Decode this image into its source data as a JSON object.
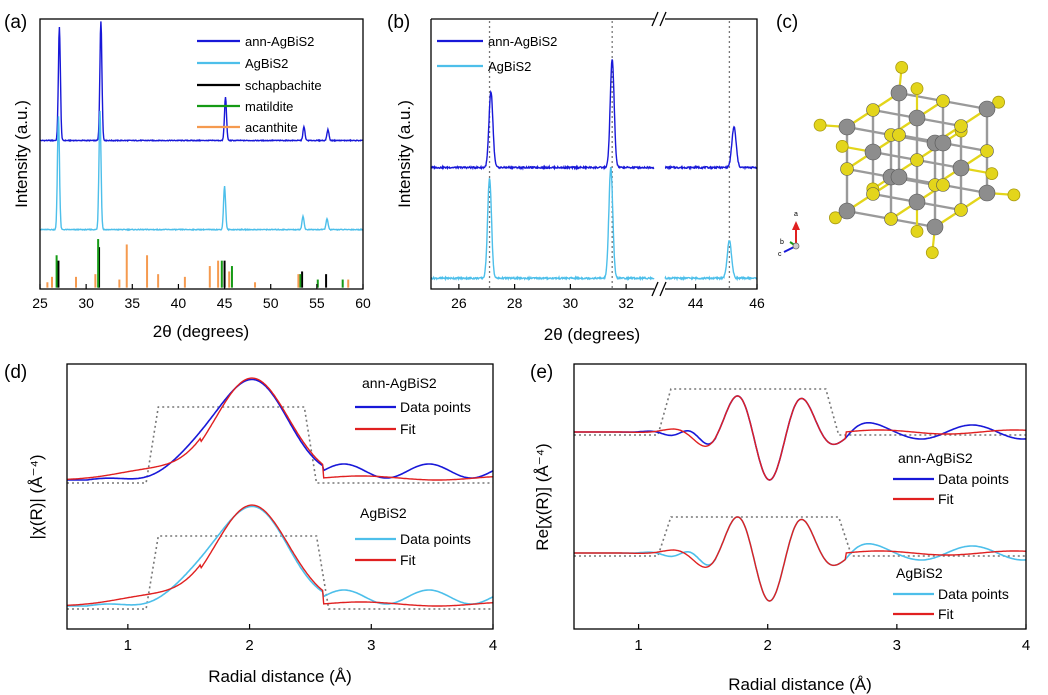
{
  "colors": {
    "dark": "#1818d8",
    "light": "#4dbfea",
    "black": "#000000",
    "green": "#159a15",
    "orange": "#f59a4f",
    "fit": "#e02020",
    "dotted": "#777777",
    "sulfur": "#e3d51b",
    "bi": "#b54bc4",
    "ag": "#8d8d8d",
    "bond": "#9a9a9a"
  },
  "icons": {
    "crystal_structure": "ball-and-stick AgBiS2 crystal model",
    "axis_triad": "a-b-c axis triad"
  },
  "chart_data": [
    {
      "panel": "(a)",
      "type": "line",
      "xlabel": "2θ (degrees)",
      "ylabel": "Intensity (a.u.)",
      "xlim": [
        25,
        60
      ],
      "xticks": [
        "25",
        "30",
        "35",
        "40",
        "45",
        "50",
        "55",
        "60"
      ],
      "legend_position": "top-right",
      "series": [
        {
          "name": "ann-AgBiS2",
          "color": "#1818d8",
          "offset": 0.55,
          "peaks": [
            [
              27.1,
              0.42
            ],
            [
              31.6,
              0.44
            ],
            [
              45.1,
              0.16
            ],
            [
              53.6,
              0.05
            ],
            [
              56.2,
              0.04
            ]
          ]
        },
        {
          "name": "AgBiS2",
          "color": "#4dbfea",
          "offset": 0.22,
          "peaks": [
            [
              27.0,
              0.42
            ],
            [
              31.5,
              0.44
            ],
            [
              45.0,
              0.16
            ],
            [
              53.5,
              0.05
            ],
            [
              56.1,
              0.04
            ]
          ]
        }
      ],
      "references": [
        {
          "name": "schapbachite",
          "color": "#000000",
          "sticks": [
            [
              27.0,
              0.1
            ],
            [
              31.4,
              0.15
            ],
            [
              45.0,
              0.1
            ],
            [
              53.4,
              0.06
            ],
            [
              56.0,
              0.05
            ]
          ]
        },
        {
          "name": "matildite",
          "color": "#159a15",
          "sticks": [
            [
              26.8,
              0.12
            ],
            [
              31.3,
              0.18
            ],
            [
              44.7,
              0.1
            ],
            [
              45.8,
              0.08
            ],
            [
              53.2,
              0.05
            ],
            [
              55.1,
              0.03
            ],
            [
              57.8,
              0.03
            ]
          ]
        },
        {
          "name": "acanthite",
          "color": "#f59a4f",
          "sticks": [
            [
              25.8,
              0.02
            ],
            [
              26.3,
              0.04
            ],
            [
              28.9,
              0.04
            ],
            [
              31.0,
              0.05
            ],
            [
              33.6,
              0.03
            ],
            [
              34.4,
              0.16
            ],
            [
              36.6,
              0.12
            ],
            [
              37.8,
              0.05
            ],
            [
              40.7,
              0.04
            ],
            [
              43.4,
              0.08
            ],
            [
              44.3,
              0.1
            ],
            [
              45.5,
              0.06
            ],
            [
              48.3,
              0.02
            ],
            [
              53.0,
              0.05
            ],
            [
              58.4,
              0.03
            ]
          ]
        }
      ]
    },
    {
      "panel": "(b)",
      "type": "line",
      "xlabel": "2θ (degrees)",
      "ylabel": "Intensity (a.u.)",
      "broken_x_axis": true,
      "xlim_left": [
        25,
        33
      ],
      "xlim_right": [
        43,
        46
      ],
      "xticks": [
        "26",
        "28",
        "30",
        "32",
        "44",
        "46"
      ],
      "legend_position": "top-left",
      "reference_lines": [
        27.1,
        31.5,
        45.1
      ],
      "series": [
        {
          "name": "ann-AgBiS2",
          "color": "#1818d8",
          "offset": 0.45,
          "peaks": [
            [
              27.15,
              0.28
            ],
            [
              31.5,
              0.4
            ],
            [
              45.25,
              0.15
            ]
          ]
        },
        {
          "name": "AgBiS2",
          "color": "#4dbfea",
          "offset": 0.04,
          "peaks": [
            [
              27.1,
              0.37
            ],
            [
              31.45,
              0.41
            ],
            [
              45.1,
              0.14
            ]
          ]
        }
      ]
    },
    {
      "panel": "(c)",
      "type": "other"
    },
    {
      "panel": "(d)",
      "type": "line",
      "xlabel": "Radial distance (Å)",
      "ylabel": "|χ(R)| (Å⁻⁴)",
      "xlim": [
        0.5,
        4
      ],
      "xticks": [
        "1",
        "2",
        "3",
        "4"
      ],
      "window": [
        1.2,
        2.55
      ],
      "groups": [
        {
          "label": "ann-AgBiS2",
          "series": [
            {
              "name": "Data points",
              "color": "#1818d8"
            },
            {
              "name": "Fit",
              "color": "#e02020"
            }
          ]
        },
        {
          "label": "AgBiS2",
          "series": [
            {
              "name": "Data points",
              "color": "#4dbfea"
            },
            {
              "name": "Fit",
              "color": "#e02020"
            }
          ]
        }
      ]
    },
    {
      "panel": "(e)",
      "type": "line",
      "xlabel": "Radial distance (Å)",
      "ylabel": "Re[χ(R)] (Å⁻⁴)",
      "xlim": [
        0.5,
        4
      ],
      "xticks": [
        "1",
        "2",
        "3",
        "4"
      ],
      "window": [
        1.2,
        2.55
      ],
      "groups": [
        {
          "label": "ann-AgBiS2",
          "series": [
            {
              "name": "Data points",
              "color": "#1818d8"
            },
            {
              "name": "Fit",
              "color": "#e02020"
            }
          ]
        },
        {
          "label": "AgBiS2",
          "series": [
            {
              "name": "Data points",
              "color": "#4dbfea"
            },
            {
              "name": "Fit",
              "color": "#e02020"
            }
          ]
        }
      ]
    }
  ]
}
